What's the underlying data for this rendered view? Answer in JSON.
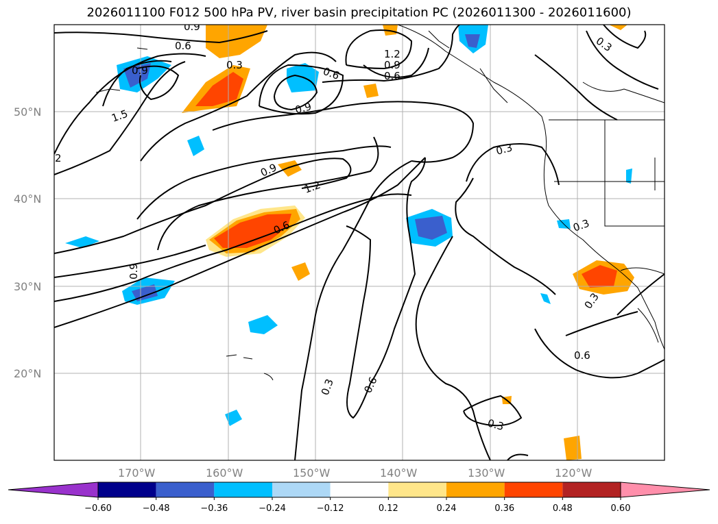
{
  "title": "2026011100 F012 500 hPa PV, river basin precipitation PC (2026011300 - 2026011600)",
  "lat_labels": [
    "50°N",
    "40°N",
    "30°N",
    "20°N"
  ],
  "lon_labels": [
    "170°W",
    "160°W",
    "150°W",
    "140°W",
    "130°W",
    "120°W"
  ],
  "contour_labels": [
    "0.9",
    "0.6",
    "0.9",
    "1.5",
    "2",
    "0.3",
    "1.2",
    "0.9",
    "0.6",
    "0.6",
    "0.9",
    "0.3",
    "0.9",
    "1.2",
    "0.6",
    "0.9",
    "0.3",
    "0.3",
    "0.3",
    "0.6",
    "0.3",
    "0.6",
    "0.3"
  ],
  "colorbar": {
    "ticks": [
      "−0.60",
      "−0.48",
      "−0.36",
      "−0.24",
      "−0.12",
      "0.12",
      "0.24",
      "0.36",
      "0.48",
      "0.60"
    ],
    "colors": [
      "#9932cc",
      "#00008b",
      "#3a5fcd",
      "#00bfff",
      "#add8f6",
      "#ffffff",
      "#ffe68a",
      "#ffa500",
      "#ff4500",
      "#b22222",
      "#ff8fab"
    ]
  },
  "colors": {
    "blue_light": "#00bfff",
    "blue_mid": "#3a5fcd",
    "orange": "#ffa500",
    "orange_red": "#ff4500",
    "yellow": "#ffe68a",
    "gray_text": "#808080"
  }
}
